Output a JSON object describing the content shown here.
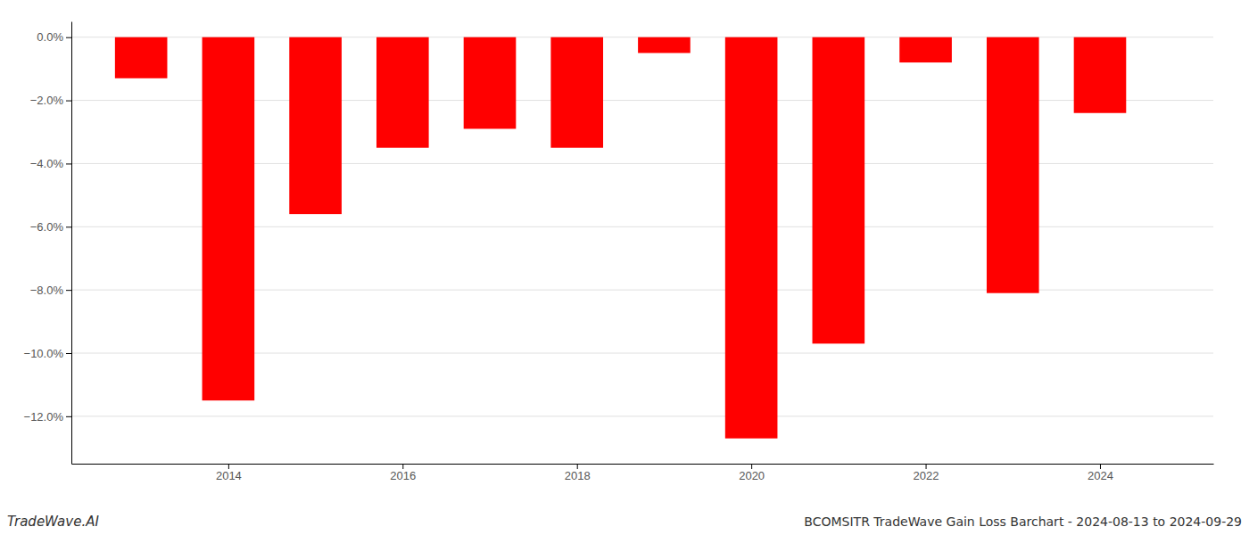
{
  "chart_data": {
    "type": "bar",
    "title": "BCOMSITR TradeWave Gain Loss Barchart - 2024-08-13 to 2024-09-29",
    "annotations": [
      "TradeWave.AI"
    ],
    "x": [
      2013,
      2014,
      2015,
      2016,
      2017,
      2018,
      2019,
      2020,
      2021,
      2022,
      2023,
      2024
    ],
    "values": [
      -1.3,
      -11.5,
      -5.6,
      -3.5,
      -2.9,
      -3.5,
      -0.5,
      -12.7,
      -9.7,
      -0.8,
      -8.1,
      -2.4
    ],
    "color": "#ff0000",
    "xlim": [
      2012.2,
      2025.3
    ],
    "xticks": [
      2014,
      2016,
      2018,
      2020,
      2022,
      2024
    ],
    "ylim": [
      -13.5,
      0.5
    ],
    "yticks": [
      {
        "value": 0.0,
        "label": "0.0%"
      },
      {
        "value": -2.0,
        "label": "−2.0%"
      },
      {
        "value": -4.0,
        "label": "−4.0%"
      },
      {
        "value": -6.0,
        "label": "−6.0%"
      },
      {
        "value": -8.0,
        "label": "−8.0%"
      },
      {
        "value": -10.0,
        "label": "−10.0%"
      },
      {
        "value": -12.0,
        "label": "−12.0%"
      }
    ],
    "grid": true
  }
}
